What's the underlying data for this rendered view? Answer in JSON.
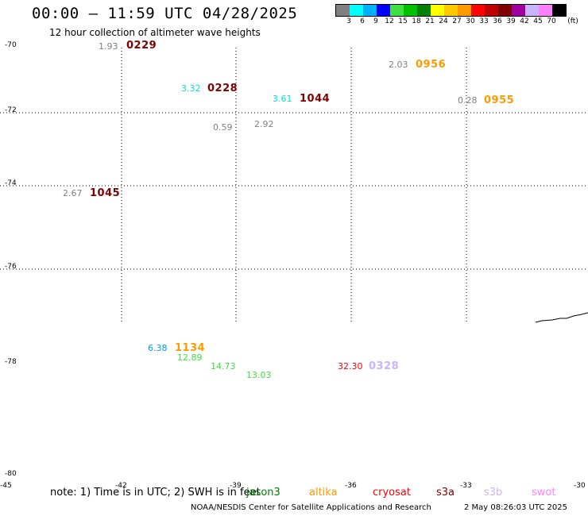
{
  "header": {
    "title": "00:00 – 11:59 UTC 04/28/2025",
    "subtitle": "12 hour collection of altimeter wave heights"
  },
  "colorbar": {
    "colors": [
      "#808080",
      "#00ffff",
      "#00b0ff",
      "#0000ff",
      "#40e040",
      "#00c000",
      "#008000",
      "#ffff00",
      "#ffc800",
      "#ff9900",
      "#ff0000",
      "#c00000",
      "#800000",
      "#a000a0",
      "#c8b4ff",
      "#ff80ff",
      "#000000"
    ],
    "labels": [
      "3",
      "6",
      "9",
      "12",
      "15",
      "18",
      "21",
      "24",
      "27",
      "30",
      "33",
      "36",
      "39",
      "42",
      "45",
      "70"
    ],
    "unit": "(ft)"
  },
  "lat_labels": [
    "-70",
    "-72",
    "-74",
    "-76",
    "-78",
    "-80"
  ],
  "lon_labels": [
    "-45",
    "-42",
    "-39",
    "-36",
    "-33",
    "-30"
  ],
  "observations": [
    {
      "height": "1.93",
      "color": "#808080"
    },
    {
      "height": "3.32",
      "color": "#00e0e0"
    },
    {
      "height": "3.61",
      "color": "#00e0e0"
    },
    {
      "height": "2.03",
      "color": "#808080"
    },
    {
      "height": "0.28",
      "color": "#808080"
    },
    {
      "height": "0.59",
      "color": "#808080"
    },
    {
      "height": "2.92",
      "color": "#808080"
    },
    {
      "height": "2.67",
      "color": "#808080"
    },
    {
      "height": "6.38",
      "color": "#00a0e0"
    },
    {
      "height": "12.89",
      "color": "#40e040"
    },
    {
      "height": "14.73",
      "color": "#40e040"
    },
    {
      "height": "13.03",
      "color": "#40e040"
    },
    {
      "height": "32.30",
      "color": "#ff0000"
    }
  ],
  "passes": [
    {
      "time": "0229",
      "color": "#800000"
    },
    {
      "time": "0228",
      "color": "#800000"
    },
    {
      "time": "1044",
      "color": "#800000"
    },
    {
      "time": "0956",
      "color": "#ff9900"
    },
    {
      "time": "0955",
      "color": "#ff9900"
    },
    {
      "time": "1045",
      "color": "#800000"
    },
    {
      "time": "1134",
      "color": "#ff9900"
    },
    {
      "time": "0328",
      "color": "#c8b4ff"
    }
  ],
  "footer": {
    "note": "note: 1) Time is in UTC; 2) SWH is in feet",
    "legend": [
      {
        "name": "jason3",
        "color": "#008000"
      },
      {
        "name": "altika",
        "color": "#ff9900"
      },
      {
        "name": "cryosat",
        "color": "#ff0000"
      },
      {
        "name": "s3a",
        "color": "#800000"
      },
      {
        "name": "s3b",
        "color": "#c8b4ff"
      },
      {
        "name": "swot",
        "color": "#ff80ff"
      }
    ],
    "credit": "NOAA/NESDIS Center for Satellite Applications and Research",
    "date": "2 May 08:26:03 UTC 2025"
  }
}
